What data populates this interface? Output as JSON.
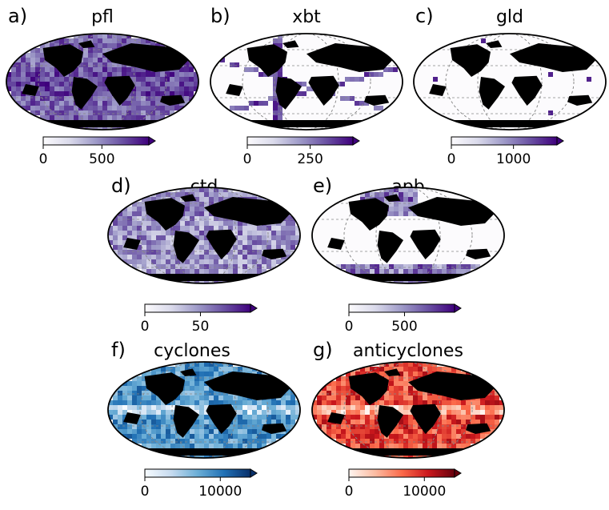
{
  "colors": {
    "Purples": [
      "#fcfbfd",
      "#dadaeb",
      "#9e9ac8",
      "#6a51a3",
      "#3f007d"
    ],
    "Blues": [
      "#f7fbff",
      "#c6dbef",
      "#6baed6",
      "#2171b5",
      "#08306b"
    ],
    "Reds": [
      "#fff5f0",
      "#fcbba1",
      "#fb6a4a",
      "#cb181d",
      "#67000d"
    ],
    "land": "#000000",
    "grid": "#888888"
  },
  "chart_data": [
    {
      "type": "heatmap",
      "panel": "a)",
      "title": "pfl",
      "colormap": "Purples",
      "colorbar": {
        "ticks": [
          0,
          500
        ],
        "max": 900,
        "extend": "max"
      },
      "intensity": "high"
    },
    {
      "type": "heatmap",
      "panel": "b)",
      "title": "xbt",
      "colormap": "Purples",
      "colorbar": {
        "ticks": [
          0,
          250
        ],
        "max": 420,
        "extend": "max"
      },
      "intensity": "tracks"
    },
    {
      "type": "heatmap",
      "panel": "c)",
      "title": "gld",
      "colormap": "Purples",
      "colorbar": {
        "ticks": [
          0,
          1000
        ],
        "max": 1700,
        "extend": "max"
      },
      "intensity": "sparse"
    },
    {
      "type": "heatmap",
      "panel": "d)",
      "title": "ctd",
      "colormap": "Purples",
      "colorbar": {
        "ticks": [
          0,
          50
        ],
        "max": 95,
        "extend": "max"
      },
      "intensity": "medium"
    },
    {
      "type": "heatmap",
      "panel": "e)",
      "title": "apb",
      "colormap": "Purples",
      "colorbar": {
        "ticks": [
          0,
          500
        ],
        "max": 950,
        "extend": "max"
      },
      "intensity": "polar"
    },
    {
      "type": "heatmap",
      "panel": "f)",
      "title": "cyclones",
      "colormap": "Blues",
      "colorbar": {
        "ticks": [
          0,
          10000
        ],
        "max": 14000,
        "extend": "max"
      },
      "intensity": "eddy"
    },
    {
      "type": "heatmap",
      "panel": "g)",
      "title": "anticyclones",
      "colormap": "Reds",
      "colorbar": {
        "ticks": [
          0,
          10000
        ],
        "max": 14000,
        "extend": "max"
      },
      "intensity": "eddy"
    }
  ]
}
